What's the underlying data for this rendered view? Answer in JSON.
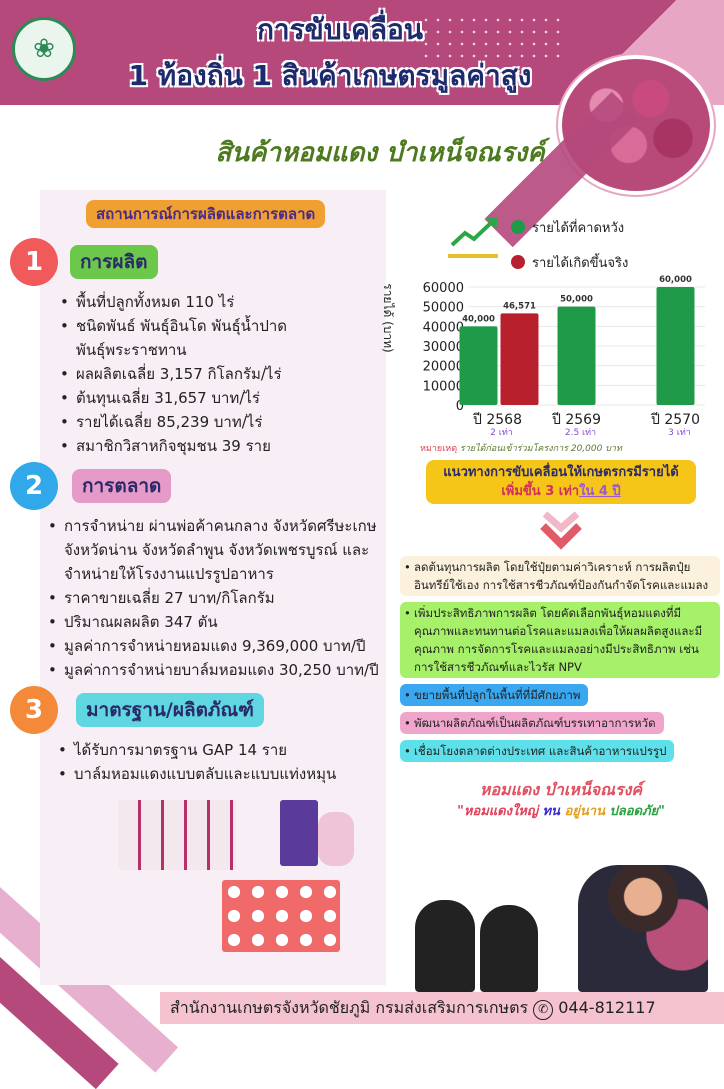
{
  "header": {
    "title_line1": "การขับเคลื่อน",
    "title_line2": "1 ท้องถิ่น 1 สินค้าเกษตรมูลค่าสูง",
    "subtitle": "สินค้าหอมแดง บำเหน็จณรงค์"
  },
  "left": {
    "section_title": "สถานการณ์การผลิตและการตลาด",
    "sections": [
      {
        "number": "1",
        "label": "การผลิต",
        "color": "#f05a5a",
        "label_bg": "#6cc84a",
        "items": [
          "พื้นที่ปลูกทั้งหมด 110 ไร่",
          "ชนิดพันธ์ พันธุ์อินโด พันธุ์น้ำปาด พันธุ์พระราชทาน",
          "ผลผลิตเฉลี่ย 3,157 กิโลกรัม/ไร่",
          "ต้นทุนเฉลี่ย 31,657 บาท/ไร่",
          "รายได้เฉลี่ย 85,239 บาท/ไร่",
          "สมาชิกวิสาหกิจชุมชน 39 ราย"
        ]
      },
      {
        "number": "2",
        "label": "การตลาด",
        "color": "#30a8ea",
        "label_bg": "#e69ac8",
        "items": [
          "การจำหน่าย ผ่านพ่อค้าคนกลาง จังหวัดศรีษะเกษ จังหวัดน่าน จังหวัดลำพูน จังหวัดเพชรบูรณ์ และจำหน่ายให้โรงงานแปรรูปอาหาร",
          "ราคาขายเฉลี่ย 27 บาท/กิโลกรัม",
          "ปริมาณผลผลิต 347 ตัน",
          "มูลค่าการจำหน่ายหอมแดง 9,369,000 บาท/ปี",
          "มูลค่าการจำหน่ายบาล์มหอมแดง 30,250 บาท/ปี"
        ]
      },
      {
        "number": "3",
        "label": "มาตรฐาน/ผลิตภัณฑ์",
        "color": "#f5893a",
        "label_bg": "#5fd6e0",
        "items": [
          "ได้รับการมาตรฐาน GAP 14 ราย",
          "บาล์มหอมแดงแบบตลับและแบบแท่งหมุน"
        ]
      }
    ]
  },
  "chart_data": {
    "type": "bar",
    "ylabel": "รายได้ (บาท)",
    "ylim": [
      0,
      60000
    ],
    "yticks": [
      0,
      10000,
      20000,
      30000,
      40000,
      50000,
      60000
    ],
    "grid": true,
    "legend_placement": "top",
    "categories": [
      "ปี 2568",
      "ปี 2569",
      "ปี 2570"
    ],
    "category_notes": [
      "2 เท่า",
      "2.5 เท่า",
      "3 เท่า"
    ],
    "series": [
      {
        "name": "รายได้ที่คาดหวัง",
        "color": "#1e9a48",
        "values": [
          40000,
          50000,
          60000
        ],
        "labels": [
          "40,000",
          "50,000",
          "60,000"
        ]
      },
      {
        "name": "รายได้เกิดขึ้นจริง",
        "color": "#b8202e",
        "values": [
          46571,
          null,
          null
        ],
        "labels": [
          "46,571",
          "",
          ""
        ]
      }
    ],
    "note_label": "หมายเหตุ",
    "note_text": "รายได้ก่อนเข้าร่วมโครงการ 20,000 บาท"
  },
  "plan": {
    "line1": "แนวทางการขับเคลื่อนให้เกษตรกรมีรายได้",
    "line2_a": "เพิ่มขึ้น 3 เท่า",
    "line2_b": "ใน 4 ปี"
  },
  "strategies": [
    {
      "text": "ลดต้นทุนการผลิต โดยใช้ปุ๋ยตามค่าวิเคราะห์ การผลิตปุ๋ยอินทรีย์ใช้เอง การใช้สารชีวภัณฑ์ป้องกันกำจัดโรคและแมลง",
      "color": "#fbf1dc"
    },
    {
      "text": "เพิ่มประสิทธิภาพการผลิต โดยคัดเลือกพันธุ์หอมแดงที่มีคุณภาพและทนทานต่อโรคและแมลงเพื่อให้ผลผลิตสูงและมีคุณภาพ การจัดการโรคและแมลงอย่างมีประสิทธิภาพ เช่น การใช้สารชีวภัณฑ์และไวรัส NPV",
      "color": "#a6f06a"
    },
    {
      "text": "ขยายพื้นที่ปลูกในพื้นที่ที่มีศักยภาพ",
      "color": "#3aa8f0"
    },
    {
      "text": "พัฒนาผลิตภัณฑ์เป็นผลิตภัณฑ์บรรเทาอาการหวัด",
      "color": "#f0a6cc"
    },
    {
      "text": "เชื่อมโยงตลาดต่างประเทศ และสินค้าอาหารแปรรูป",
      "color": "#5ee0ea"
    }
  ],
  "slogan": {
    "line1": "หอมแดง บำเหน็จณรงค์",
    "quote_a": "\"หอมแดงใหญ่ ",
    "quote_b": "ทน ",
    "quote_c": "อยู่นาน ",
    "quote_d": "ปลอดภัย\""
  },
  "footer": {
    "text": "สำนักงานเกษตรจังหวัดชัยภูมิ กรมส่งเสริมการเกษตร",
    "phone_icon": "phone-icon",
    "phone": "044-812117"
  }
}
